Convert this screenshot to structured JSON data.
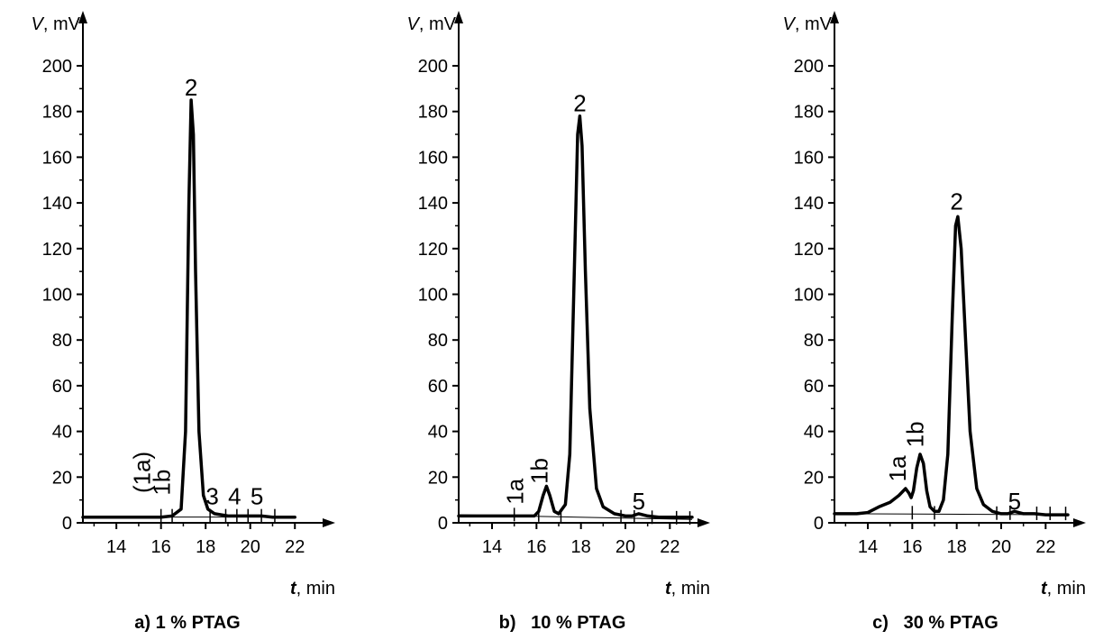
{
  "chart_data": [
    {
      "type": "line",
      "caption": "a) 1 % PTAG",
      "ylabel_var": "V",
      "ylabel_unit": ", mV",
      "xlabel_var": "t",
      "xlabel_unit": ", min",
      "ylim": [
        0,
        200
      ],
      "xlim": [
        12.5,
        23
      ],
      "yticks": [
        0,
        20,
        40,
        60,
        80,
        100,
        120,
        140,
        160,
        180,
        200
      ],
      "xticks": [
        14,
        16,
        18,
        20,
        22
      ],
      "series": [
        {
          "x": [
            12.5,
            15.0,
            16.0,
            16.5,
            16.9,
            17.1,
            17.25,
            17.35,
            17.45,
            17.55,
            17.7,
            17.9,
            18.1,
            18.4,
            19.0,
            19.5,
            20.0,
            20.5,
            21.0,
            21.5,
            22.0
          ],
          "y": [
            2.5,
            2.5,
            2.5,
            3,
            6,
            40,
            140,
            185,
            170,
            110,
            40,
            12,
            6,
            4,
            3,
            3,
            3,
            3,
            2.5,
            2.5,
            2.5
          ]
        }
      ],
      "baseline": {
        "x": [
          12.5,
          22.0
        ],
        "y": [
          2.5,
          2.5
        ]
      },
      "integration_marks": [
        16.0,
        16.5,
        18.2,
        18.9,
        19.4,
        19.9,
        20.5,
        21.1
      ],
      "annotations": [
        {
          "text": "2",
          "x": 17.35,
          "y": 187
        },
        {
          "text": "(1a)",
          "x": 15.5,
          "y": 13,
          "rotate": -90
        },
        {
          "text": "1b",
          "x": 16.4,
          "y": 12,
          "rotate": -90
        },
        {
          "text": "3",
          "x": 18.3,
          "y": 8
        },
        {
          "text": "4",
          "x": 19.3,
          "y": 8
        },
        {
          "text": "5",
          "x": 20.3,
          "y": 8
        }
      ]
    },
    {
      "type": "line",
      "caption": "b)   10 % PTAG",
      "ylabel_var": "V",
      "ylabel_unit": ", mV",
      "xlabel_var": "t",
      "xlabel_unit": ", min",
      "ylim": [
        0,
        200
      ],
      "xlim": [
        12.5,
        23
      ],
      "yticks": [
        0,
        20,
        40,
        60,
        80,
        100,
        120,
        140,
        160,
        180,
        200
      ],
      "xticks": [
        14,
        16,
        18,
        20,
        22
      ],
      "series": [
        {
          "x": [
            12.5,
            14.5,
            15.0,
            15.5,
            15.9,
            16.1,
            16.3,
            16.45,
            16.6,
            16.8,
            17.0,
            17.3,
            17.5,
            17.7,
            17.85,
            17.95,
            18.05,
            18.2,
            18.4,
            18.7,
            19.0,
            19.5,
            20.0,
            20.3,
            20.6,
            21.0,
            21.5,
            22.0,
            23.0
          ],
          "y": [
            3,
            3,
            3,
            3,
            3,
            5,
            12,
            16,
            12,
            5,
            4,
            8,
            30,
            110,
            170,
            178,
            165,
            110,
            50,
            15,
            7,
            4,
            3,
            3,
            4,
            3,
            2.5,
            2.5,
            2.5
          ]
        }
      ],
      "baseline": {
        "x": [
          12.5,
          23.0
        ],
        "y": [
          3.5,
          1.5
        ]
      },
      "integration_marks": [
        15.0,
        16.1,
        17.1,
        19.8,
        20.4,
        21.2,
        22.3,
        22.9
      ],
      "annotations": [
        {
          "text": "2",
          "x": 17.95,
          "y": 180
        },
        {
          "text": "1a",
          "x": 15.4,
          "y": 8,
          "rotate": -90
        },
        {
          "text": "1b",
          "x": 16.5,
          "y": 17,
          "rotate": -90
        },
        {
          "text": "5",
          "x": 20.6,
          "y": 6
        }
      ]
    },
    {
      "type": "line",
      "caption": "c)   30 % PTAG",
      "ylabel_var": "V",
      "ylabel_unit": ", mV",
      "xlabel_var": "t",
      "xlabel_unit": ", min",
      "ylim": [
        0,
        200
      ],
      "xlim": [
        12.5,
        23
      ],
      "yticks": [
        0,
        20,
        40,
        60,
        80,
        100,
        120,
        140,
        160,
        180,
        200
      ],
      "xticks": [
        14,
        16,
        18,
        20,
        22
      ],
      "series": [
        {
          "x": [
            12.5,
            13.5,
            14.0,
            14.5,
            15.0,
            15.4,
            15.7,
            15.85,
            15.95,
            16.05,
            16.2,
            16.35,
            16.5,
            16.65,
            16.8,
            17.0,
            17.2,
            17.4,
            17.6,
            17.8,
            17.95,
            18.05,
            18.2,
            18.4,
            18.6,
            18.9,
            19.2,
            19.6,
            20.0,
            20.3,
            20.6,
            21.0,
            21.5,
            22.0,
            23.0
          ],
          "y": [
            4,
            4,
            4.5,
            7,
            9,
            12,
            15,
            13,
            11,
            14,
            24,
            30,
            26,
            14,
            7,
            5,
            5,
            10,
            30,
            90,
            130,
            134,
            120,
            80,
            40,
            15,
            8,
            5,
            4,
            4,
            5,
            4,
            4,
            3.5,
            3.5
          ]
        }
      ],
      "baseline": {
        "x": [
          12.5,
          23.0
        ],
        "y": [
          4,
          3.5
        ]
      },
      "integration_marks": [
        16.0,
        17.0,
        19.8,
        20.4,
        21.6,
        22.2,
        22.9
      ],
      "annotations": [
        {
          "text": "2",
          "x": 18.0,
          "y": 137
        },
        {
          "text": "1a",
          "x": 15.7,
          "y": 18,
          "rotate": -90
        },
        {
          "text": "1b",
          "x": 16.5,
          "y": 33,
          "rotate": -90
        },
        {
          "text": "5",
          "x": 20.6,
          "y": 6
        }
      ]
    }
  ]
}
